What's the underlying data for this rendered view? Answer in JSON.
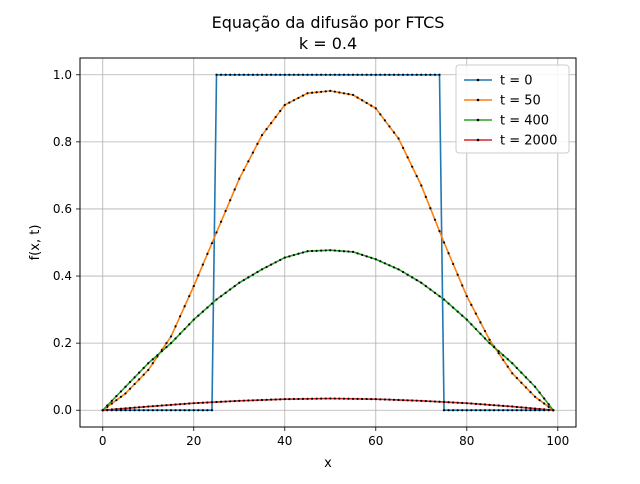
{
  "chart_data": {
    "type": "line",
    "title_line1": "Equação da difusão por FTCS",
    "title_line2": "k = 0.4",
    "xlabel": "x",
    "ylabel": "f(x, t)",
    "xlim": [
      -5,
      104
    ],
    "ylim": [
      -0.05,
      1.05
    ],
    "xticks": [
      0,
      20,
      40,
      60,
      80,
      100
    ],
    "yticks": [
      0.0,
      0.2,
      0.4,
      0.6,
      0.8,
      1.0
    ],
    "xtick_labels": [
      "0",
      "20",
      "40",
      "60",
      "80",
      "100"
    ],
    "ytick_labels": [
      "0.0",
      "0.2",
      "0.4",
      "0.6",
      "0.8",
      "1.0"
    ],
    "grid": true,
    "legend_position": "top-right",
    "marker_color": "#000000",
    "series": [
      {
        "name": "t = 0",
        "color": "#1f77b4",
        "x": [
          0,
          24,
          25,
          74,
          75,
          99
        ],
        "y": [
          0.0,
          0.0,
          1.0,
          1.0,
          0.0,
          0.0
        ]
      },
      {
        "name": "t = 50",
        "color": "#ff7f0e",
        "x": [
          0,
          5,
          10,
          15,
          20,
          25,
          30,
          35,
          40,
          45,
          50,
          55,
          60,
          65,
          70,
          75,
          80,
          85,
          90,
          95,
          99
        ],
        "y": [
          0.0,
          0.05,
          0.12,
          0.22,
          0.37,
          0.53,
          0.69,
          0.82,
          0.91,
          0.945,
          0.952,
          0.94,
          0.9,
          0.81,
          0.67,
          0.5,
          0.34,
          0.21,
          0.11,
          0.04,
          0.0
        ]
      },
      {
        "name": "t = 400",
        "color": "#2ca02c",
        "x": [
          0,
          5,
          10,
          15,
          20,
          25,
          30,
          35,
          40,
          45,
          50,
          55,
          60,
          65,
          70,
          75,
          80,
          85,
          90,
          95,
          99
        ],
        "y": [
          0.0,
          0.07,
          0.14,
          0.2,
          0.27,
          0.33,
          0.38,
          0.42,
          0.455,
          0.474,
          0.477,
          0.472,
          0.45,
          0.42,
          0.38,
          0.33,
          0.27,
          0.2,
          0.14,
          0.07,
          0.0
        ]
      },
      {
        "name": "t = 2000",
        "color": "#d62728",
        "x": [
          0,
          10,
          20,
          30,
          40,
          50,
          60,
          70,
          80,
          90,
          99
        ],
        "y": [
          0.0,
          0.011,
          0.021,
          0.028,
          0.033,
          0.035,
          0.033,
          0.028,
          0.021,
          0.011,
          0.0
        ]
      }
    ]
  }
}
